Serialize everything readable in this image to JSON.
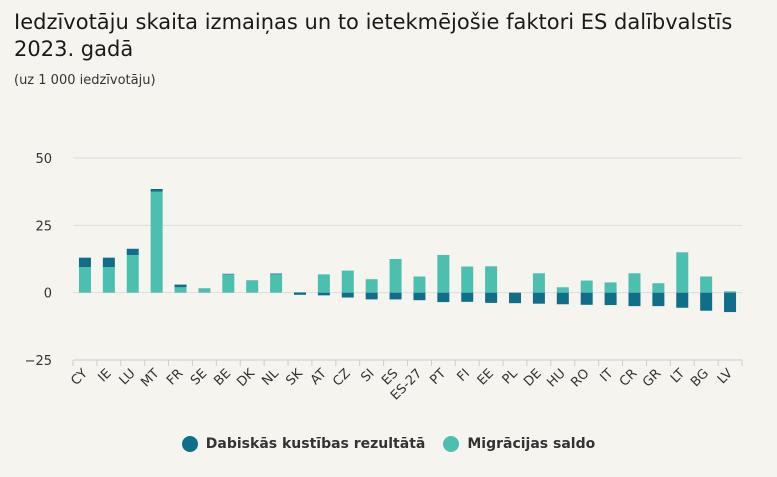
{
  "title": "Iedzīvotāju skaita izmaiņas un to ietekmējošie faktori ES dalībvalstīs 2023. gadā",
  "subtitle": "(uz 1 000 iedzīvotāju)",
  "colors": {
    "natural": "#0f6e8a",
    "migration": "#4cc0b0",
    "grid": "#dddddd",
    "axis": "#cccccc"
  },
  "chart_data": {
    "type": "bar",
    "stacked": true,
    "ylim": [
      -25,
      50
    ],
    "yticks": [
      -25,
      0,
      25,
      50
    ],
    "ytick_labels": [
      "−25",
      "0",
      "25",
      "50"
    ],
    "grid": true,
    "legend_position": "bottom",
    "categories": [
      "CY",
      "IE",
      "LU",
      "MT",
      "FR",
      "SE",
      "BE",
      "DK",
      "NL",
      "SK",
      "AT",
      "CZ",
      "SI",
      "ES",
      "ES-27",
      "PT",
      "FI",
      "EE",
      "PL",
      "DE",
      "HU",
      "RO",
      "IT",
      "CR",
      "GR",
      "LT",
      "BG",
      "LV"
    ],
    "series": [
      {
        "name": "Dabiskās kustības rezultātā",
        "values": [
          3.5,
          3.5,
          2.3,
          1.0,
          1.0,
          0.1,
          0.2,
          0.2,
          0.3,
          -0.8,
          -1.0,
          -1.8,
          -2.5,
          -2.5,
          -2.8,
          -3.5,
          -3.4,
          -3.8,
          -3.9,
          -4.1,
          -4.3,
          -4.5,
          -4.6,
          -5.0,
          -5.0,
          -5.6,
          -6.7,
          -7.2
        ]
      },
      {
        "name": "Migrācijas saldo",
        "values": [
          9.5,
          9.5,
          14.0,
          37.5,
          2.0,
          1.5,
          6.8,
          4.3,
          6.8,
          0.2,
          6.8,
          8.2,
          5.0,
          12.5,
          6.0,
          14.0,
          9.7,
          9.8,
          0.0,
          7.2,
          2.0,
          4.5,
          3.8,
          7.2,
          3.5,
          15.0,
          6.0,
          0.5
        ]
      }
    ]
  }
}
